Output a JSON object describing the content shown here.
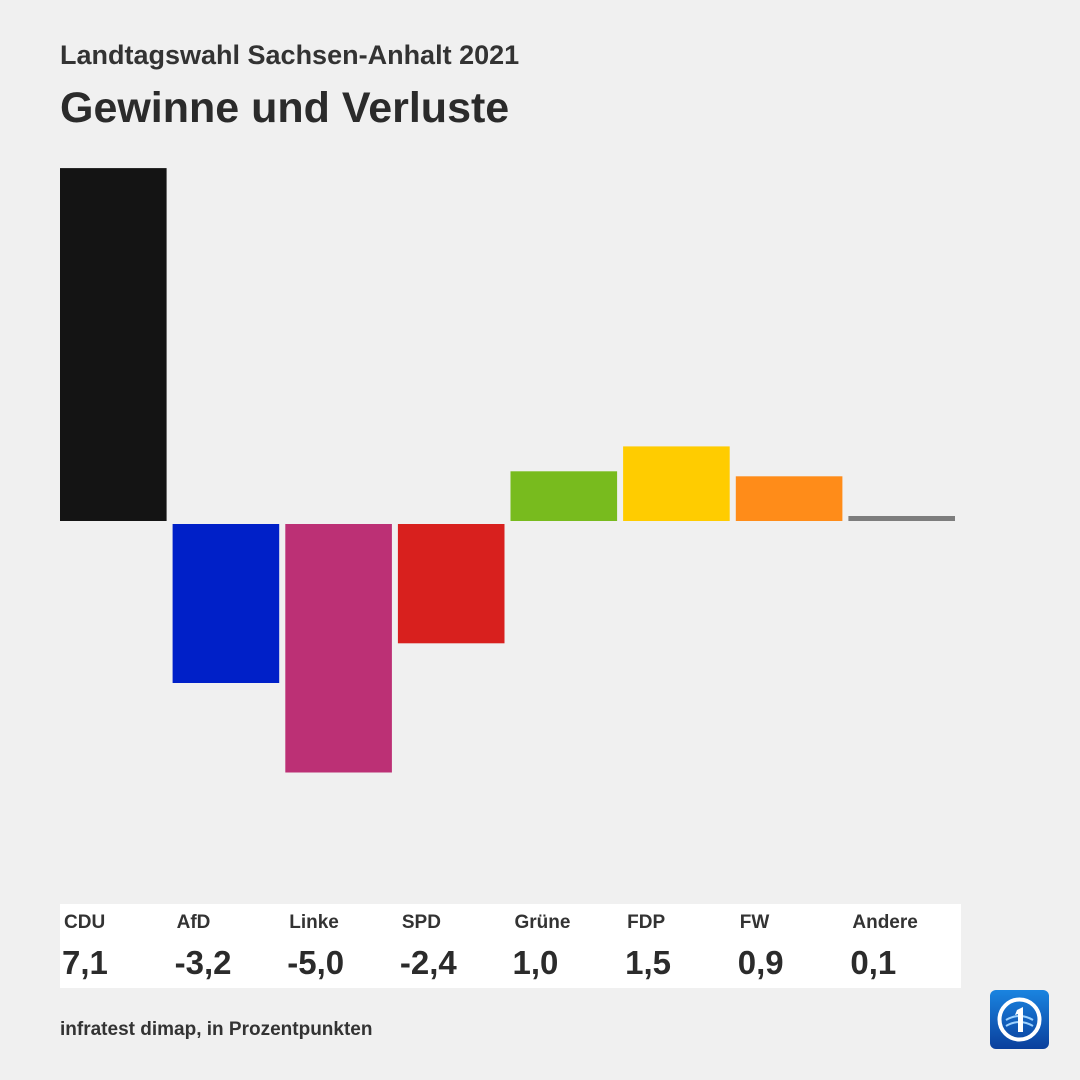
{
  "header": {
    "subtitle": "Landtagswahl Sachsen-Anhalt 2021",
    "title": "Gewinne und Verluste"
  },
  "footer": {
    "source": "infratest dimap, in Prozentpunkten"
  },
  "chart_data": {
    "type": "bar",
    "title": "Gewinne und Verluste",
    "subtitle": "Landtagswahl Sachsen-Anhalt 2021",
    "unit": "Prozentpunkte",
    "categories": [
      "CDU",
      "AfD",
      "Linke",
      "SPD",
      "Grüne",
      "FDP",
      "FW",
      "Andere"
    ],
    "values": [
      7.1,
      -3.2,
      -5.0,
      -2.4,
      1.0,
      1.5,
      0.9,
      0.1
    ],
    "value_labels": [
      "7,1",
      "-3,2",
      "-5,0",
      "-2,4",
      "1,0",
      "1,5",
      "0,9",
      "0,1"
    ],
    "colors": [
      "#141414",
      "#0020c8",
      "#bc3075",
      "#d8201e",
      "#78bb1e",
      "#ffcc00",
      "#ff8c19",
      "#7d7d7d"
    ],
    "ylim": [
      -7.1,
      7.1
    ],
    "grid": false,
    "legend": "bottom"
  }
}
